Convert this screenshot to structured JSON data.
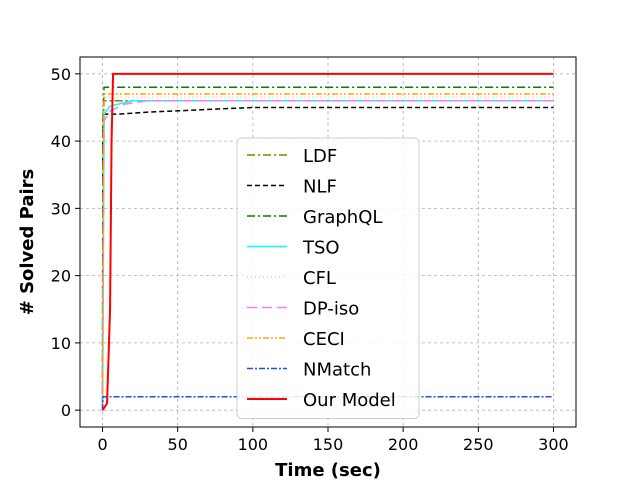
{
  "chart_data": {
    "type": "line",
    "title": "",
    "xlabel": "Time (sec)",
    "ylabel": "# Solved Pairs",
    "xlim": [
      -15,
      315
    ],
    "ylim": [
      -2.5,
      52.5
    ],
    "xticks": [
      0,
      50,
      100,
      150,
      200,
      250,
      300
    ],
    "yticks": [
      0,
      10,
      20,
      30,
      40,
      50
    ],
    "grid": true,
    "legend_position": "center",
    "series": [
      {
        "name": "LDF",
        "color": "#808000",
        "dash": "8,3,2,3",
        "width": 1.5,
        "points": [
          [
            0,
            0
          ],
          [
            0.3,
            40
          ],
          [
            1,
            46
          ],
          [
            300,
            46
          ]
        ]
      },
      {
        "name": "NLF",
        "color": "#000000",
        "dash": "5,3",
        "width": 1.5,
        "points": [
          [
            0,
            0
          ],
          [
            0.2,
            40
          ],
          [
            0.5,
            44
          ],
          [
            10,
            44
          ],
          [
            30,
            44.3
          ],
          [
            60,
            44.6
          ],
          [
            100,
            45
          ],
          [
            300,
            45
          ]
        ]
      },
      {
        "name": "GraphQL",
        "color": "#008000",
        "dash": "8,3,2,3",
        "width": 1.5,
        "points": [
          [
            0,
            0
          ],
          [
            0.2,
            42
          ],
          [
            1,
            48
          ],
          [
            300,
            48
          ]
        ]
      },
      {
        "name": "TSO",
        "color": "#00ffff",
        "dash": "",
        "width": 1.5,
        "points": [
          [
            0,
            0
          ],
          [
            1,
            44
          ],
          [
            5,
            45.2
          ],
          [
            20,
            46
          ],
          [
            300,
            46
          ]
        ]
      },
      {
        "name": "CFL",
        "color": "#ffb6c1",
        "dash": "1,3",
        "width": 1.5,
        "points": [
          [
            0,
            0
          ],
          [
            0.5,
            40
          ],
          [
            2,
            46.5
          ],
          [
            300,
            46.5
          ]
        ]
      },
      {
        "name": "DP-iso",
        "color": "#ee82ee",
        "dash": "10,5",
        "width": 1.5,
        "points": [
          [
            0,
            0
          ],
          [
            1,
            43
          ],
          [
            5,
            44.5
          ],
          [
            15,
            45.5
          ],
          [
            30,
            46
          ],
          [
            300,
            46
          ]
        ]
      },
      {
        "name": "CECI",
        "color": "#ffa500",
        "dash": "6,2,2,2,2,2",
        "width": 1.5,
        "points": [
          [
            0,
            0
          ],
          [
            0.5,
            40
          ],
          [
            1,
            47
          ],
          [
            300,
            47
          ]
        ]
      },
      {
        "name": "NMatch",
        "color": "#1f4fe0",
        "dash": "6,2,2,2",
        "width": 1.5,
        "points": [
          [
            0,
            0
          ],
          [
            0.3,
            2
          ],
          [
            300,
            2
          ]
        ]
      },
      {
        "name": "Our Model",
        "color": "#ff0000",
        "dash": "",
        "width": 2,
        "points": [
          [
            0,
            0
          ],
          [
            3,
            1
          ],
          [
            4,
            8
          ],
          [
            5,
            15
          ],
          [
            6,
            40
          ],
          [
            7,
            50
          ],
          [
            300,
            50
          ]
        ]
      }
    ]
  }
}
